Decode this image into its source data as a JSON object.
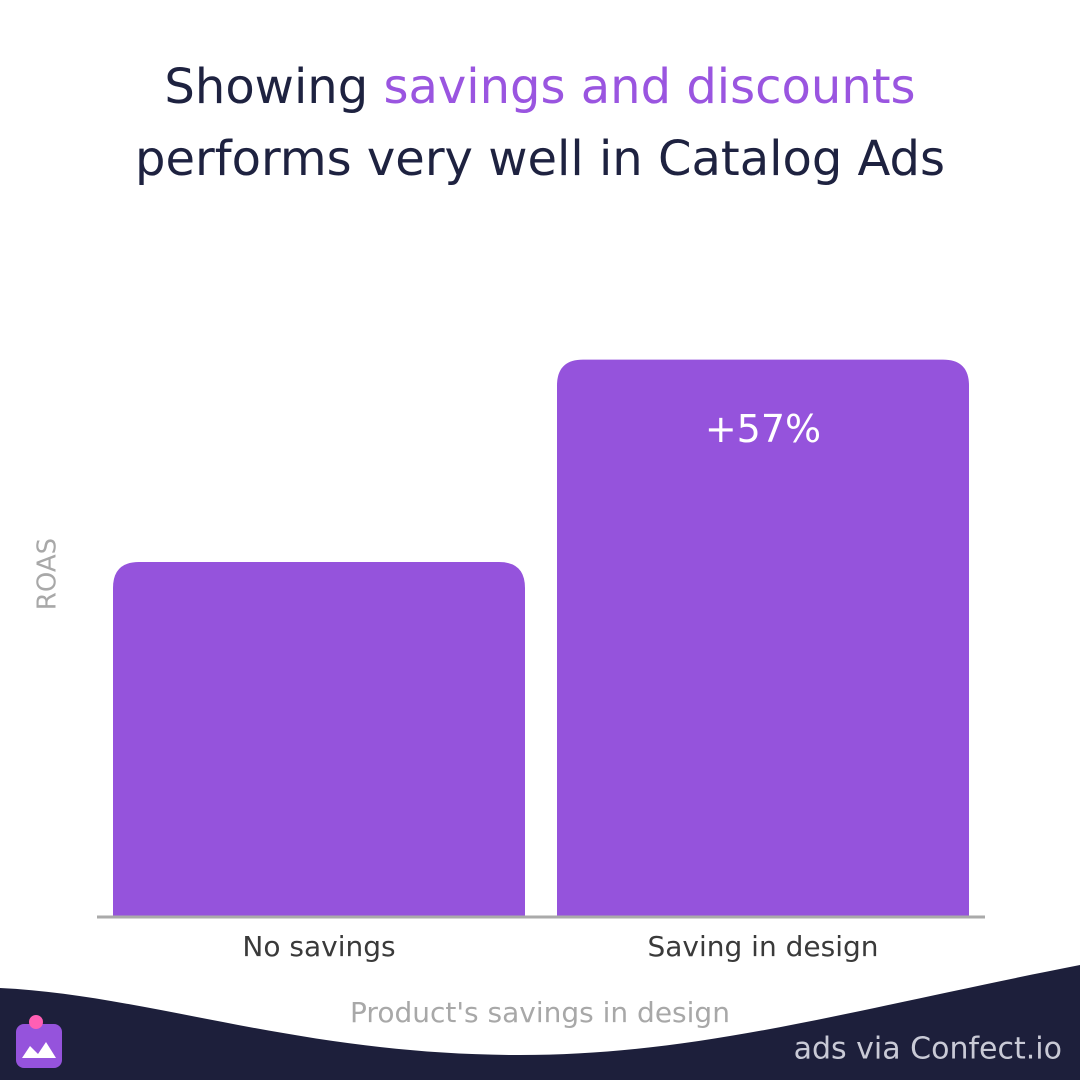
{
  "chart_data": {
    "type": "bar",
    "title": {
      "lines": [
        [
          {
            "text": "Showing",
            "highlight": false
          },
          {
            "text": "savings and discounts",
            "highlight": true
          }
        ],
        [
          {
            "text": "performs very well in Catalog Ads",
            "highlight": false
          }
        ]
      ]
    },
    "categories": [
      "No savings",
      "Saving in design"
    ],
    "values": [
      100,
      157
    ],
    "annotations": [
      {
        "category": 1,
        "text": "+57%"
      }
    ],
    "color": "#9553dc",
    "highlight_color": "#9a55e0",
    "ylim": [
      0,
      160
    ],
    "x_label": "Product's savings in design",
    "y_label": "ROAS",
    "footer": "ads via Confect.io"
  }
}
